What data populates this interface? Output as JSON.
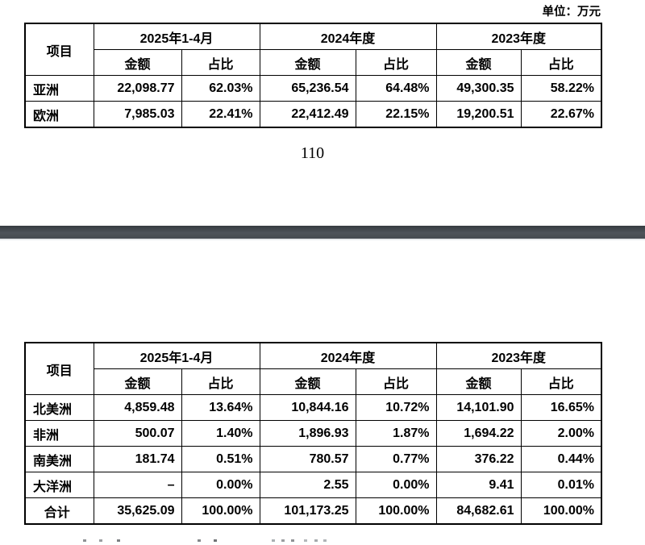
{
  "page": {
    "unit_label": "单位：万元",
    "page_number": "110"
  },
  "colors": {
    "page_background": "#ffffff",
    "text": "#000000",
    "table_border": "#000000",
    "page_separator_dark": "#42484d"
  },
  "tables": [
    {
      "header": {
        "item_label": "项目",
        "group_labels": [
          "2025年1-4月",
          "2024年度",
          "2023年度"
        ],
        "subcolumn_labels": [
          "金额",
          "占比"
        ]
      },
      "rows": [
        {
          "label": "亚洲",
          "is_total": false,
          "values": [
            "22,098.77",
            "62.03%",
            "65,236.54",
            "64.48%",
            "49,300.35",
            "58.22%"
          ]
        },
        {
          "label": "欧洲",
          "is_total": false,
          "values": [
            "7,985.03",
            "22.41%",
            "22,412.49",
            "22.15%",
            "19,200.51",
            "22.67%"
          ]
        }
      ]
    },
    {
      "header": {
        "item_label": "项目",
        "group_labels": [
          "2025年1-4月",
          "2024年度",
          "2023年度"
        ],
        "subcolumn_labels": [
          "金额",
          "占比"
        ]
      },
      "rows": [
        {
          "label": "北美洲",
          "is_total": false,
          "values": [
            "4,859.48",
            "13.64%",
            "10,844.16",
            "10.72%",
            "14,101.90",
            "16.65%"
          ]
        },
        {
          "label": "非洲",
          "is_total": false,
          "values": [
            "500.07",
            "1.40%",
            "1,896.93",
            "1.87%",
            "1,694.22",
            "2.00%"
          ]
        },
        {
          "label": "南美洲",
          "is_total": false,
          "values": [
            "181.74",
            "0.51%",
            "780.57",
            "0.77%",
            "376.22",
            "0.44%"
          ]
        },
        {
          "label": "大洋洲",
          "is_total": false,
          "values": [
            "–",
            "0.00%",
            "2.55",
            "0.00%",
            "9.41",
            "0.01%"
          ]
        },
        {
          "label": "合计",
          "is_total": true,
          "values": [
            "35,625.09",
            "100.00%",
            "101,173.25",
            "100.00%",
            "84,682.61",
            "100.00%"
          ]
        }
      ]
    }
  ]
}
